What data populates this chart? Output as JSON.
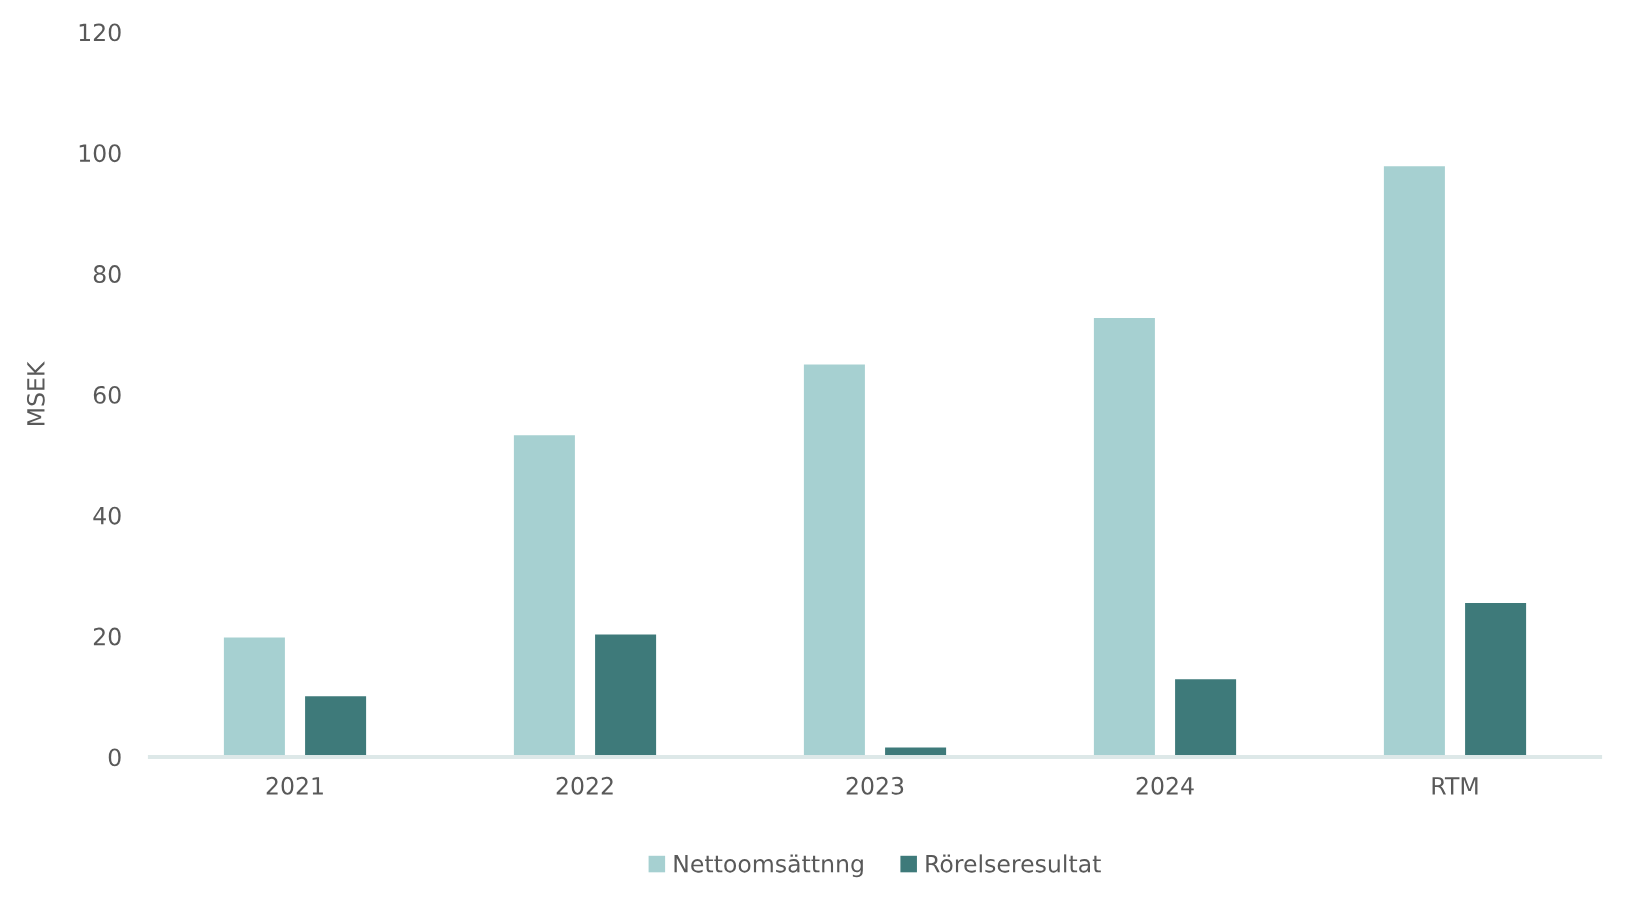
{
  "chart_data": {
    "type": "bar",
    "ylabel": "MSEK",
    "categories": [
      "2021",
      "2022",
      "2023",
      "2024",
      "RTM"
    ],
    "series": [
      {
        "name": "Nettoomsättnng",
        "color": "#a6d0d1",
        "values": [
          20,
          53.5,
          65.2,
          72.9,
          98.0
        ]
      },
      {
        "name": "Rörelseresultat",
        "color": "#3e7a7a",
        "values": [
          10.3,
          20.5,
          1.8,
          13.1,
          25.7
        ]
      }
    ],
    "ylim": [
      0,
      120
    ],
    "yticks": [
      0,
      20,
      40,
      60,
      80,
      100,
      120
    ],
    "legend": "bottom"
  }
}
